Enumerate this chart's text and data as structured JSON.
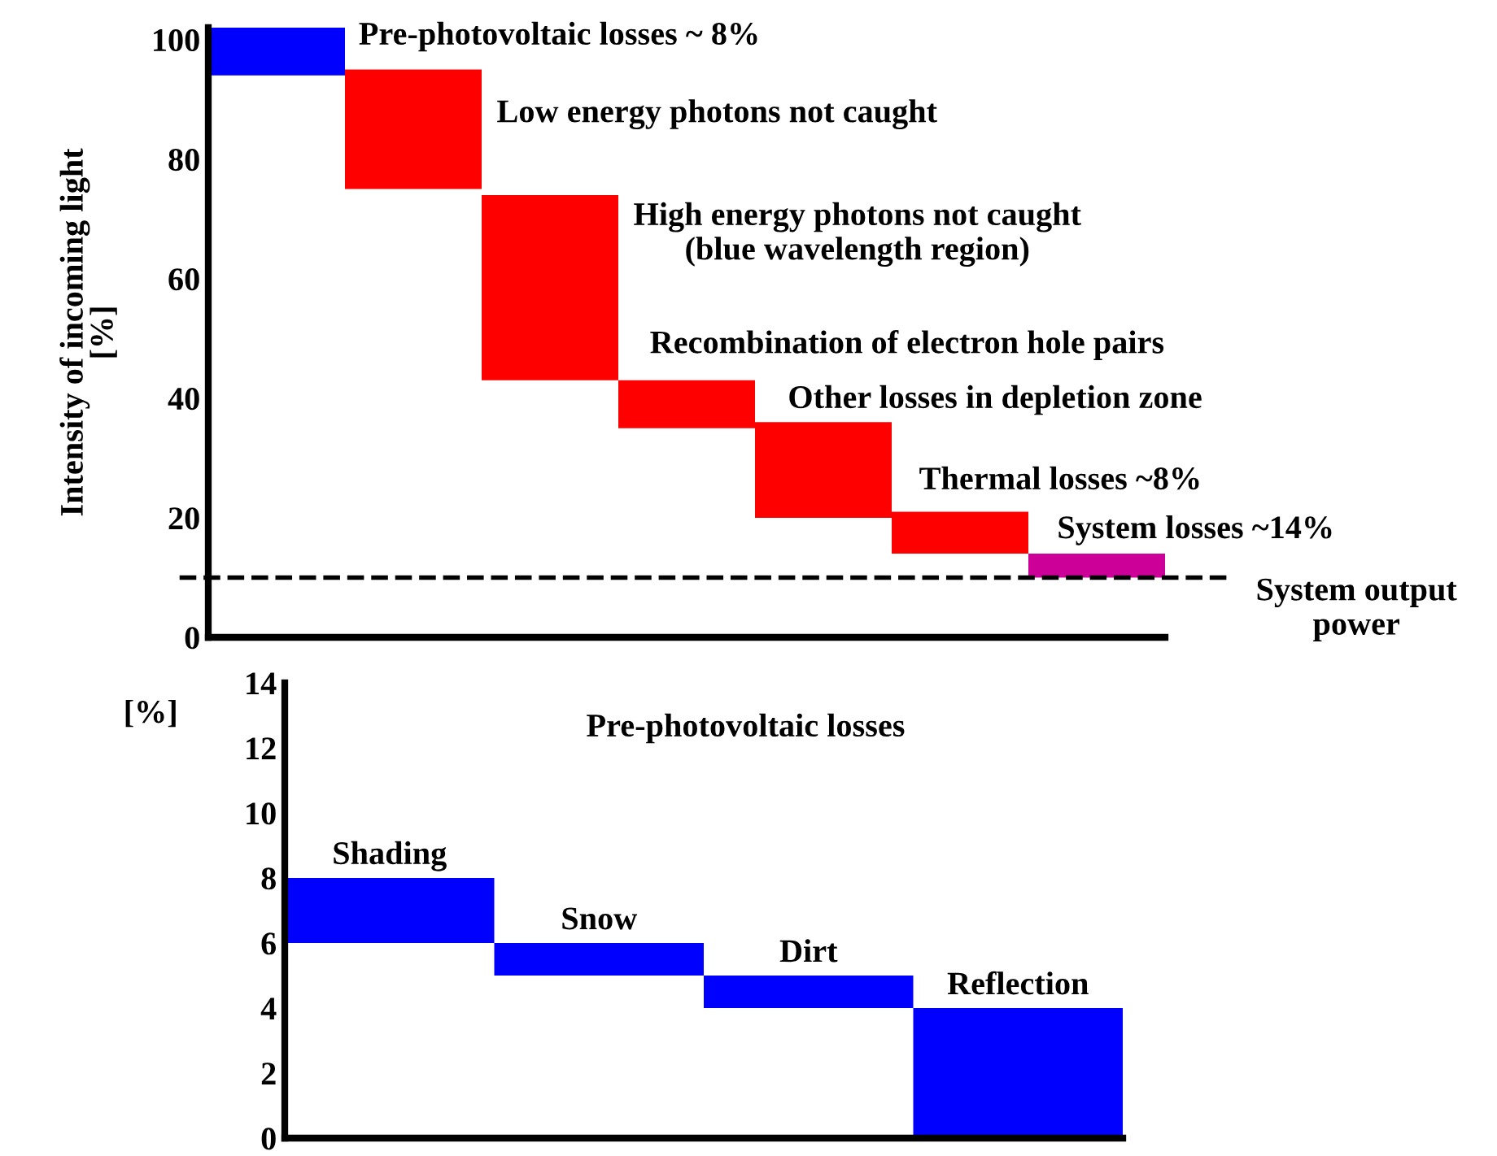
{
  "chart_data": [
    {
      "type": "bar",
      "ylabel": "Intensity of incoming light\n[%]",
      "categories": [
        null,
        null,
        null,
        null,
        null,
        null,
        null
      ],
      "annotations": [
        "Pre-photovoltaic losses ~ 8%",
        "Low energy photons not caught",
        "High energy photons not caught\n(blue wavelength region)",
        "Recombination of electron hole pairs",
        "Other losses in depletion zone",
        "Thermal losses ~8%",
        "System losses ~14%"
      ],
      "values": [
        8,
        20,
        31,
        8,
        16,
        7,
        4
      ],
      "base": [
        94,
        75,
        43,
        35,
        20,
        14,
        10
      ],
      "colors": [
        "#0000ff",
        "#ff0000",
        "#ff0000",
        "#ff0000",
        "#ff0000",
        "#ff0000",
        "#cc0099"
      ],
      "ylim": [
        0,
        102
      ],
      "yticks": [
        0,
        20,
        40,
        60,
        80,
        100
      ],
      "tick_labels": "y",
      "ref_lines": [
        {
          "axis": "y",
          "value": 10,
          "label": "System output power",
          "color": "#000000",
          "line_style": "dashed"
        }
      ]
    },
    {
      "type": "bar",
      "title": "Pre-photovoltaic losses",
      "ylabel": "[%]",
      "categories": [
        "Shading",
        "Snow",
        "Dirt",
        "Reflection"
      ],
      "values": [
        2,
        1,
        1,
        4
      ],
      "base": [
        6,
        5,
        4,
        0
      ],
      "colors": [
        "#0000ff",
        "#0000ff",
        "#0000ff",
        "#0000ff"
      ],
      "ylim": [
        0,
        14
      ],
      "yticks": [
        0,
        2,
        4,
        6,
        8,
        10,
        12,
        14
      ],
      "tick_labels": "y"
    }
  ]
}
